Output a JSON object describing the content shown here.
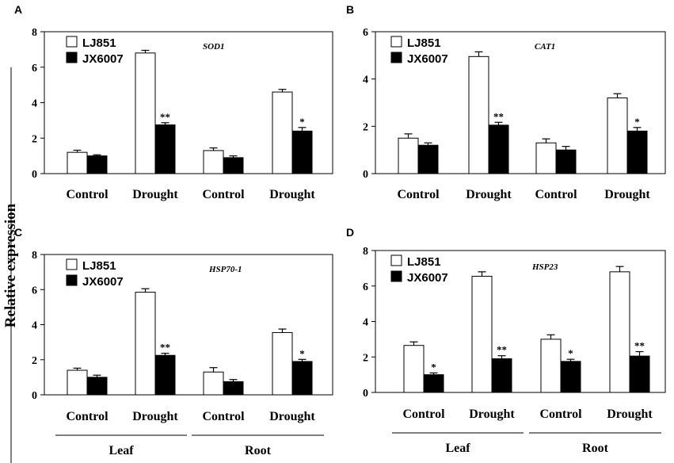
{
  "figure": {
    "ylabel": "Relative expression",
    "group_labels": [
      "Leaf",
      "Root"
    ]
  },
  "chart_data": [
    {
      "panel": "A",
      "type": "bar",
      "gene": "SOD1",
      "categories": [
        "Control",
        "Drought",
        "Control",
        "Drought"
      ],
      "ylim": [
        0,
        8
      ],
      "yticks": [
        0,
        2,
        4,
        6,
        8
      ],
      "series": [
        {
          "name": "LJ851",
          "color": "#ffffff",
          "values": [
            1.2,
            6.8,
            1.3,
            4.6
          ],
          "errors": [
            0.12,
            0.15,
            0.15,
            0.15
          ]
        },
        {
          "name": "JX6007",
          "color": "#000000",
          "values": [
            1.0,
            2.75,
            0.9,
            2.4
          ],
          "errors": [
            0.06,
            0.12,
            0.1,
            0.2
          ]
        }
      ],
      "significance": [
        "",
        "**",
        "",
        "*"
      ]
    },
    {
      "panel": "B",
      "type": "bar",
      "gene": "CAT1",
      "categories": [
        "Control",
        "Drought",
        "Control",
        "Drought"
      ],
      "ylim": [
        0,
        6
      ],
      "yticks": [
        0,
        2,
        4,
        6
      ],
      "series": [
        {
          "name": "LJ851",
          "color": "#ffffff",
          "values": [
            1.5,
            4.95,
            1.3,
            3.2
          ],
          "errors": [
            0.18,
            0.2,
            0.17,
            0.18
          ]
        },
        {
          "name": "JX6007",
          "color": "#000000",
          "values": [
            1.2,
            2.05,
            1.0,
            1.8
          ],
          "errors": [
            0.1,
            0.12,
            0.15,
            0.15
          ]
        }
      ],
      "significance": [
        "",
        "**",
        "",
        "*"
      ]
    },
    {
      "panel": "C",
      "type": "bar",
      "gene": "HSP70-1",
      "categories": [
        "Control",
        "Drought",
        "Control",
        "Drought"
      ],
      "ylim": [
        0,
        8
      ],
      "yticks": [
        0,
        2,
        4,
        6,
        8
      ],
      "series": [
        {
          "name": "LJ851",
          "color": "#ffffff",
          "values": [
            1.4,
            5.85,
            1.3,
            3.55
          ],
          "errors": [
            0.12,
            0.2,
            0.25,
            0.2
          ]
        },
        {
          "name": "JX6007",
          "color": "#000000",
          "values": [
            1.0,
            2.25,
            0.75,
            1.9
          ],
          "errors": [
            0.12,
            0.12,
            0.12,
            0.12
          ]
        }
      ],
      "significance": [
        "",
        "**",
        "",
        "*"
      ]
    },
    {
      "panel": "D",
      "type": "bar",
      "gene": "HSP23",
      "categories": [
        "Control",
        "Drought",
        "Control",
        "Drought"
      ],
      "ylim": [
        0,
        8
      ],
      "yticks": [
        0,
        2,
        4,
        6,
        8
      ],
      "series": [
        {
          "name": "LJ851",
          "color": "#ffffff",
          "values": [
            2.65,
            6.55,
            3.0,
            6.8
          ],
          "errors": [
            0.2,
            0.25,
            0.25,
            0.3
          ]
        },
        {
          "name": "JX6007",
          "color": "#000000",
          "values": [
            1.0,
            1.9,
            1.75,
            2.05
          ],
          "errors": [
            0.1,
            0.17,
            0.12,
            0.25
          ]
        }
      ],
      "significance": [
        "*",
        "**",
        "*",
        "**"
      ]
    }
  ]
}
